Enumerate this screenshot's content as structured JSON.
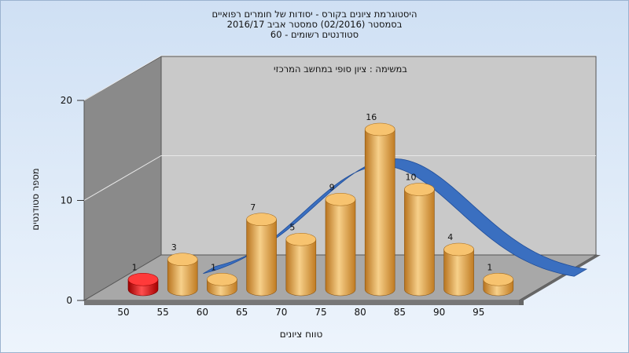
{
  "chart_data": {
    "type": "bar",
    "title_lines": [
      "היסטוגרמת ציונים בקורס - יסודות של חומרים רפואיים",
      "בסמסטר  (02/2016)  סמסטר אביב 2016/17",
      "סטודנטים רשומים - 60"
    ],
    "subtitle": "במשימה : ציון סופי במחשב המרכזי",
    "xlabel": "טווח ציונים",
    "ylabel": "מספר סטודנטים",
    "categories": [
      "50",
      "55",
      "60",
      "65",
      "70",
      "75",
      "80",
      "85",
      "90",
      "95"
    ],
    "values": [
      1,
      3,
      1,
      7,
      5,
      9,
      16,
      10,
      4,
      1
    ],
    "highlight_index": 0,
    "yticks": [
      0,
      10,
      20
    ],
    "ylim": [
      0,
      20
    ],
    "curve_type": "normal distribution band",
    "colors": {
      "bar": "#e8a84a",
      "highlight_bar": "#dd1111",
      "curve": "#3a6fc0",
      "background_top": "#cfe0f4",
      "background_bottom": "#edf4fc",
      "wall": "#c9c9c9",
      "side_wall": "#8a8a8a",
      "floor": "#a8a8a8"
    }
  }
}
